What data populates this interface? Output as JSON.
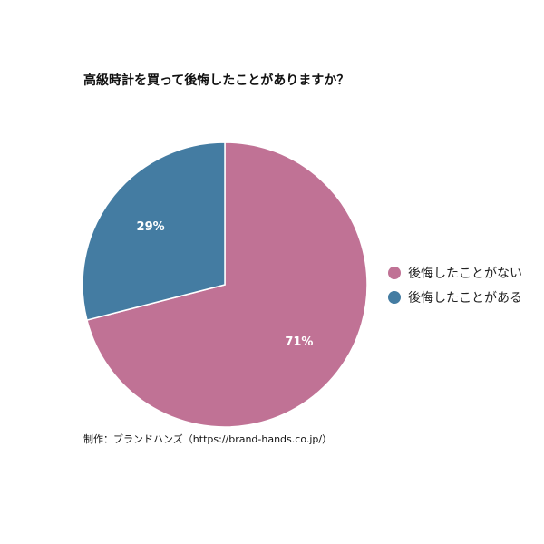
{
  "chart_data": {
    "type": "pie",
    "title": "高級時計を買って後悔したことがありますか？",
    "categories": [
      "後悔したことがない",
      "後悔したことがある"
    ],
    "values": [
      71,
      29
    ],
    "value_labels": [
      "71%",
      "29%"
    ],
    "colors": [
      "#c07295",
      "#447ca2"
    ],
    "legend_position": "right",
    "source": "制作：ブランドハンズ（https://brand-hands.co.jp/）"
  }
}
